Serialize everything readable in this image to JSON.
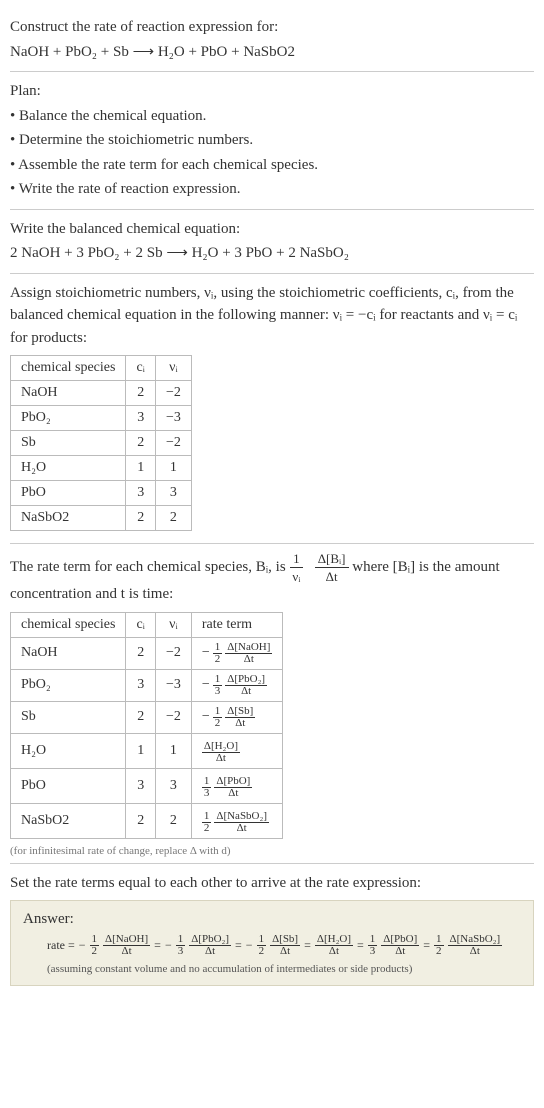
{
  "header": {
    "title": "Construct the rate of reaction expression for:",
    "equation": "NaOH + PbO₂ + Sb ⟶ H₂O + PbO + NaSbO2"
  },
  "plan": {
    "title": "Plan:",
    "items": [
      "• Balance the chemical equation.",
      "• Determine the stoichiometric numbers.",
      "• Assemble the rate term for each chemical species.",
      "• Write the rate of reaction expression."
    ]
  },
  "balanced": {
    "title": "Write the balanced chemical equation:",
    "equation": "2 NaOH + 3 PbO₂ + 2 Sb ⟶ H₂O + 3 PbO + 2 NaSbO₂"
  },
  "stoich": {
    "intro": "Assign stoichiometric numbers, νᵢ, using the stoichiometric coefficients, cᵢ, from the balanced chemical equation in the following manner: νᵢ = −cᵢ for reactants and νᵢ = cᵢ for products:",
    "headers": [
      "chemical species",
      "cᵢ",
      "νᵢ"
    ],
    "rows": [
      [
        "NaOH",
        "2",
        "−2"
      ],
      [
        "PbO₂",
        "3",
        "−3"
      ],
      [
        "Sb",
        "2",
        "−2"
      ],
      [
        "H₂O",
        "1",
        "1"
      ],
      [
        "PbO",
        "3",
        "3"
      ],
      [
        "NaSbO2",
        "2",
        "2"
      ]
    ]
  },
  "rateterm": {
    "intro_pre": "The rate term for each chemical species, Bᵢ, is ",
    "intro_post": " where [Bᵢ] is the amount concentration and t is time:",
    "frac_outer_num": "1",
    "frac_outer_den": "νᵢ",
    "frac_inner_num": "Δ[Bᵢ]",
    "frac_inner_den": "Δt",
    "headers": [
      "chemical species",
      "cᵢ",
      "νᵢ",
      "rate term"
    ],
    "rows": [
      {
        "species": "NaOH",
        "c": "2",
        "v": "−2",
        "sign": "−",
        "coef_num": "1",
        "coef_den": "2",
        "dnum": "Δ[NaOH]",
        "dden": "Δt"
      },
      {
        "species": "PbO₂",
        "c": "3",
        "v": "−3",
        "sign": "−",
        "coef_num": "1",
        "coef_den": "3",
        "dnum": "Δ[PbO₂]",
        "dden": "Δt"
      },
      {
        "species": "Sb",
        "c": "2",
        "v": "−2",
        "sign": "−",
        "coef_num": "1",
        "coef_den": "2",
        "dnum": "Δ[Sb]",
        "dden": "Δt"
      },
      {
        "species": "H₂O",
        "c": "1",
        "v": "1",
        "sign": "",
        "coef_num": "",
        "coef_den": "",
        "dnum": "Δ[H₂O]",
        "dden": "Δt"
      },
      {
        "species": "PbO",
        "c": "3",
        "v": "3",
        "sign": "",
        "coef_num": "1",
        "coef_den": "3",
        "dnum": "Δ[PbO]",
        "dden": "Δt"
      },
      {
        "species": "NaSbO2",
        "c": "2",
        "v": "2",
        "sign": "",
        "coef_num": "1",
        "coef_den": "2",
        "dnum": "Δ[NaSbO₂]",
        "dden": "Δt"
      }
    ],
    "footnote": "(for infinitesimal rate of change, replace Δ with d)"
  },
  "final": {
    "intro": "Set the rate terms equal to each other to arrive at the rate expression:",
    "answer_label": "Answer:",
    "rate_label": "rate =",
    "terms": [
      {
        "sign": "−",
        "coef_num": "1",
        "coef_den": "2",
        "dnum": "Δ[NaOH]",
        "dden": "Δt"
      },
      {
        "sign": "−",
        "coef_num": "1",
        "coef_den": "3",
        "dnum": "Δ[PbO₂]",
        "dden": "Δt"
      },
      {
        "sign": "−",
        "coef_num": "1",
        "coef_den": "2",
        "dnum": "Δ[Sb]",
        "dden": "Δt"
      },
      {
        "sign": "",
        "coef_num": "",
        "coef_den": "",
        "dnum": "Δ[H₂O]",
        "dden": "Δt"
      },
      {
        "sign": "",
        "coef_num": "1",
        "coef_den": "3",
        "dnum": "Δ[PbO]",
        "dden": "Δt"
      },
      {
        "sign": "",
        "coef_num": "1",
        "coef_den": "2",
        "dnum": "Δ[NaSbO₂]",
        "dden": "Δt"
      }
    ],
    "note": "(assuming constant volume and no accumulation of intermediates or side products)"
  },
  "style": {
    "background": "#ffffff",
    "text_color": "#333333",
    "border_color": "#cccccc",
    "table_border": "#bbbbbb",
    "answer_bg": "#f1efe2",
    "answer_border": "#d8d4bf",
    "footnote_color": "#777777",
    "body_fontsize": 15,
    "table_fontsize": 14,
    "footnote_fontsize": 11
  }
}
